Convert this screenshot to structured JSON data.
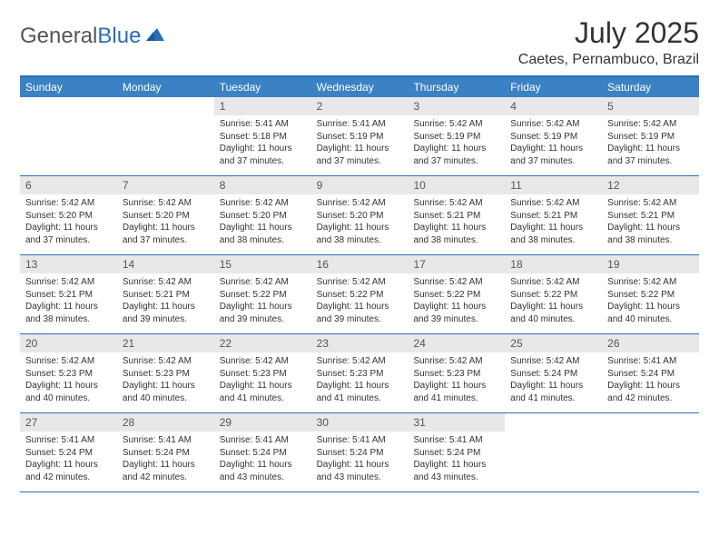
{
  "logo": {
    "text_gray": "General",
    "text_blue": "Blue"
  },
  "title": "July 2025",
  "location": "Caetes, Pernambuco, Brazil",
  "colors": {
    "header_bar": "#3b82c4",
    "border": "#2a6db8",
    "daynum_bg": "#e8e8e8",
    "text": "#333333",
    "logo_gray": "#555555"
  },
  "weekdays": [
    "Sunday",
    "Monday",
    "Tuesday",
    "Wednesday",
    "Thursday",
    "Friday",
    "Saturday"
  ],
  "weeks": [
    [
      {
        "n": "",
        "sunrise": "",
        "sunset": "",
        "daylight": ""
      },
      {
        "n": "",
        "sunrise": "",
        "sunset": "",
        "daylight": ""
      },
      {
        "n": "1",
        "sunrise": "Sunrise: 5:41 AM",
        "sunset": "Sunset: 5:18 PM",
        "daylight": "Daylight: 11 hours and 37 minutes."
      },
      {
        "n": "2",
        "sunrise": "Sunrise: 5:41 AM",
        "sunset": "Sunset: 5:19 PM",
        "daylight": "Daylight: 11 hours and 37 minutes."
      },
      {
        "n": "3",
        "sunrise": "Sunrise: 5:42 AM",
        "sunset": "Sunset: 5:19 PM",
        "daylight": "Daylight: 11 hours and 37 minutes."
      },
      {
        "n": "4",
        "sunrise": "Sunrise: 5:42 AM",
        "sunset": "Sunset: 5:19 PM",
        "daylight": "Daylight: 11 hours and 37 minutes."
      },
      {
        "n": "5",
        "sunrise": "Sunrise: 5:42 AM",
        "sunset": "Sunset: 5:19 PM",
        "daylight": "Daylight: 11 hours and 37 minutes."
      }
    ],
    [
      {
        "n": "6",
        "sunrise": "Sunrise: 5:42 AM",
        "sunset": "Sunset: 5:20 PM",
        "daylight": "Daylight: 11 hours and 37 minutes."
      },
      {
        "n": "7",
        "sunrise": "Sunrise: 5:42 AM",
        "sunset": "Sunset: 5:20 PM",
        "daylight": "Daylight: 11 hours and 37 minutes."
      },
      {
        "n": "8",
        "sunrise": "Sunrise: 5:42 AM",
        "sunset": "Sunset: 5:20 PM",
        "daylight": "Daylight: 11 hours and 38 minutes."
      },
      {
        "n": "9",
        "sunrise": "Sunrise: 5:42 AM",
        "sunset": "Sunset: 5:20 PM",
        "daylight": "Daylight: 11 hours and 38 minutes."
      },
      {
        "n": "10",
        "sunrise": "Sunrise: 5:42 AM",
        "sunset": "Sunset: 5:21 PM",
        "daylight": "Daylight: 11 hours and 38 minutes."
      },
      {
        "n": "11",
        "sunrise": "Sunrise: 5:42 AM",
        "sunset": "Sunset: 5:21 PM",
        "daylight": "Daylight: 11 hours and 38 minutes."
      },
      {
        "n": "12",
        "sunrise": "Sunrise: 5:42 AM",
        "sunset": "Sunset: 5:21 PM",
        "daylight": "Daylight: 11 hours and 38 minutes."
      }
    ],
    [
      {
        "n": "13",
        "sunrise": "Sunrise: 5:42 AM",
        "sunset": "Sunset: 5:21 PM",
        "daylight": "Daylight: 11 hours and 38 minutes."
      },
      {
        "n": "14",
        "sunrise": "Sunrise: 5:42 AM",
        "sunset": "Sunset: 5:21 PM",
        "daylight": "Daylight: 11 hours and 39 minutes."
      },
      {
        "n": "15",
        "sunrise": "Sunrise: 5:42 AM",
        "sunset": "Sunset: 5:22 PM",
        "daylight": "Daylight: 11 hours and 39 minutes."
      },
      {
        "n": "16",
        "sunrise": "Sunrise: 5:42 AM",
        "sunset": "Sunset: 5:22 PM",
        "daylight": "Daylight: 11 hours and 39 minutes."
      },
      {
        "n": "17",
        "sunrise": "Sunrise: 5:42 AM",
        "sunset": "Sunset: 5:22 PM",
        "daylight": "Daylight: 11 hours and 39 minutes."
      },
      {
        "n": "18",
        "sunrise": "Sunrise: 5:42 AM",
        "sunset": "Sunset: 5:22 PM",
        "daylight": "Daylight: 11 hours and 40 minutes."
      },
      {
        "n": "19",
        "sunrise": "Sunrise: 5:42 AM",
        "sunset": "Sunset: 5:22 PM",
        "daylight": "Daylight: 11 hours and 40 minutes."
      }
    ],
    [
      {
        "n": "20",
        "sunrise": "Sunrise: 5:42 AM",
        "sunset": "Sunset: 5:23 PM",
        "daylight": "Daylight: 11 hours and 40 minutes."
      },
      {
        "n": "21",
        "sunrise": "Sunrise: 5:42 AM",
        "sunset": "Sunset: 5:23 PM",
        "daylight": "Daylight: 11 hours and 40 minutes."
      },
      {
        "n": "22",
        "sunrise": "Sunrise: 5:42 AM",
        "sunset": "Sunset: 5:23 PM",
        "daylight": "Daylight: 11 hours and 41 minutes."
      },
      {
        "n": "23",
        "sunrise": "Sunrise: 5:42 AM",
        "sunset": "Sunset: 5:23 PM",
        "daylight": "Daylight: 11 hours and 41 minutes."
      },
      {
        "n": "24",
        "sunrise": "Sunrise: 5:42 AM",
        "sunset": "Sunset: 5:23 PM",
        "daylight": "Daylight: 11 hours and 41 minutes."
      },
      {
        "n": "25",
        "sunrise": "Sunrise: 5:42 AM",
        "sunset": "Sunset: 5:24 PM",
        "daylight": "Daylight: 11 hours and 41 minutes."
      },
      {
        "n": "26",
        "sunrise": "Sunrise: 5:41 AM",
        "sunset": "Sunset: 5:24 PM",
        "daylight": "Daylight: 11 hours and 42 minutes."
      }
    ],
    [
      {
        "n": "27",
        "sunrise": "Sunrise: 5:41 AM",
        "sunset": "Sunset: 5:24 PM",
        "daylight": "Daylight: 11 hours and 42 minutes."
      },
      {
        "n": "28",
        "sunrise": "Sunrise: 5:41 AM",
        "sunset": "Sunset: 5:24 PM",
        "daylight": "Daylight: 11 hours and 42 minutes."
      },
      {
        "n": "29",
        "sunrise": "Sunrise: 5:41 AM",
        "sunset": "Sunset: 5:24 PM",
        "daylight": "Daylight: 11 hours and 43 minutes."
      },
      {
        "n": "30",
        "sunrise": "Sunrise: 5:41 AM",
        "sunset": "Sunset: 5:24 PM",
        "daylight": "Daylight: 11 hours and 43 minutes."
      },
      {
        "n": "31",
        "sunrise": "Sunrise: 5:41 AM",
        "sunset": "Sunset: 5:24 PM",
        "daylight": "Daylight: 11 hours and 43 minutes."
      },
      {
        "n": "",
        "sunrise": "",
        "sunset": "",
        "daylight": ""
      },
      {
        "n": "",
        "sunrise": "",
        "sunset": "",
        "daylight": ""
      }
    ]
  ]
}
